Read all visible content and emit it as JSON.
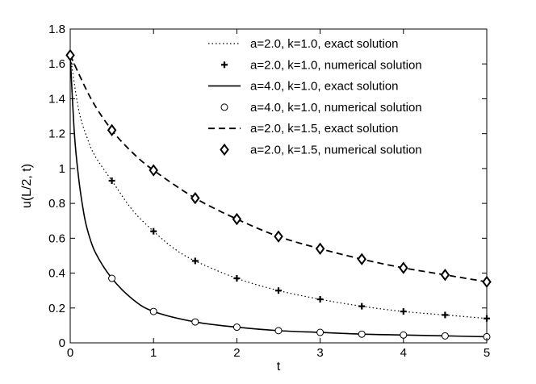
{
  "chart_data": {
    "type": "line",
    "xlabel": "t",
    "ylabel": "u(L/2, t)",
    "xlim": [
      0,
      5
    ],
    "ylim": [
      0,
      1.8
    ],
    "xticks": [
      "0",
      "1",
      "2",
      "3",
      "4",
      "5"
    ],
    "yticks": [
      "0",
      "0.2",
      "0.4",
      "0.6",
      "0.8",
      "1",
      "1.2",
      "1.4",
      "1.6",
      "1.8"
    ],
    "grid": false,
    "legend_position": "top-right",
    "series": [
      {
        "name": "a=2.0, k=1.0, exact solution",
        "style": "dotted-line",
        "color": "#000000",
        "x": [
          0,
          0.1,
          0.2,
          0.3,
          0.5,
          0.75,
          1,
          1.25,
          1.5,
          2,
          2.5,
          3,
          3.5,
          4,
          4.5,
          5
        ],
        "y": [
          1.65,
          1.34,
          1.18,
          1.07,
          0.93,
          0.76,
          0.64,
          0.54,
          0.47,
          0.37,
          0.3,
          0.25,
          0.21,
          0.18,
          0.16,
          0.14
        ]
      },
      {
        "name": "a=2.0, k=1.0, numerical solution",
        "style": "plus-markers",
        "color": "#000000",
        "x": [
          0,
          0.5,
          1,
          1.5,
          2,
          2.5,
          3,
          3.5,
          4,
          4.5,
          5
        ],
        "y": [
          1.65,
          0.93,
          0.64,
          0.47,
          0.37,
          0.3,
          0.25,
          0.21,
          0.18,
          0.16,
          0.14
        ]
      },
      {
        "name": "a=4.0, k=1.0, exact solution",
        "style": "solid-line",
        "color": "#000000",
        "x": [
          0,
          0.05,
          0.1,
          0.15,
          0.2,
          0.3,
          0.5,
          0.75,
          1,
          1.5,
          2,
          2.5,
          3,
          3.5,
          4,
          4.5,
          5
        ],
        "y": [
          1.65,
          1.2,
          0.95,
          0.78,
          0.66,
          0.52,
          0.37,
          0.25,
          0.18,
          0.12,
          0.09,
          0.07,
          0.06,
          0.05,
          0.045,
          0.04,
          0.035
        ]
      },
      {
        "name": "a=4.0, k=1.0, numerical solution",
        "style": "circle-markers",
        "color": "#000000",
        "x": [
          0.5,
          1,
          1.5,
          2,
          2.5,
          3,
          3.5,
          4,
          4.5,
          5
        ],
        "y": [
          0.37,
          0.18,
          0.12,
          0.09,
          0.07,
          0.06,
          0.05,
          0.045,
          0.04,
          0.035
        ]
      },
      {
        "name": "a=2.0, k=1.5, exact solution",
        "style": "dashed-line",
        "color": "#000000",
        "x": [
          0,
          0.25,
          0.5,
          0.75,
          1,
          1.5,
          2,
          2.5,
          3,
          3.5,
          4,
          4.5,
          5
        ],
        "y": [
          1.65,
          1.4,
          1.22,
          1.09,
          0.99,
          0.83,
          0.71,
          0.61,
          0.54,
          0.48,
          0.43,
          0.39,
          0.35
        ]
      },
      {
        "name": "a=2.0, k=1.5, numerical solution",
        "style": "diamond-markers",
        "color": "#000000",
        "x": [
          0,
          0.5,
          1,
          1.5,
          2,
          2.5,
          3,
          3.5,
          4,
          4.5,
          5
        ],
        "y": [
          1.65,
          1.22,
          0.99,
          0.83,
          0.71,
          0.61,
          0.54,
          0.48,
          0.43,
          0.39,
          0.35
        ]
      }
    ]
  }
}
